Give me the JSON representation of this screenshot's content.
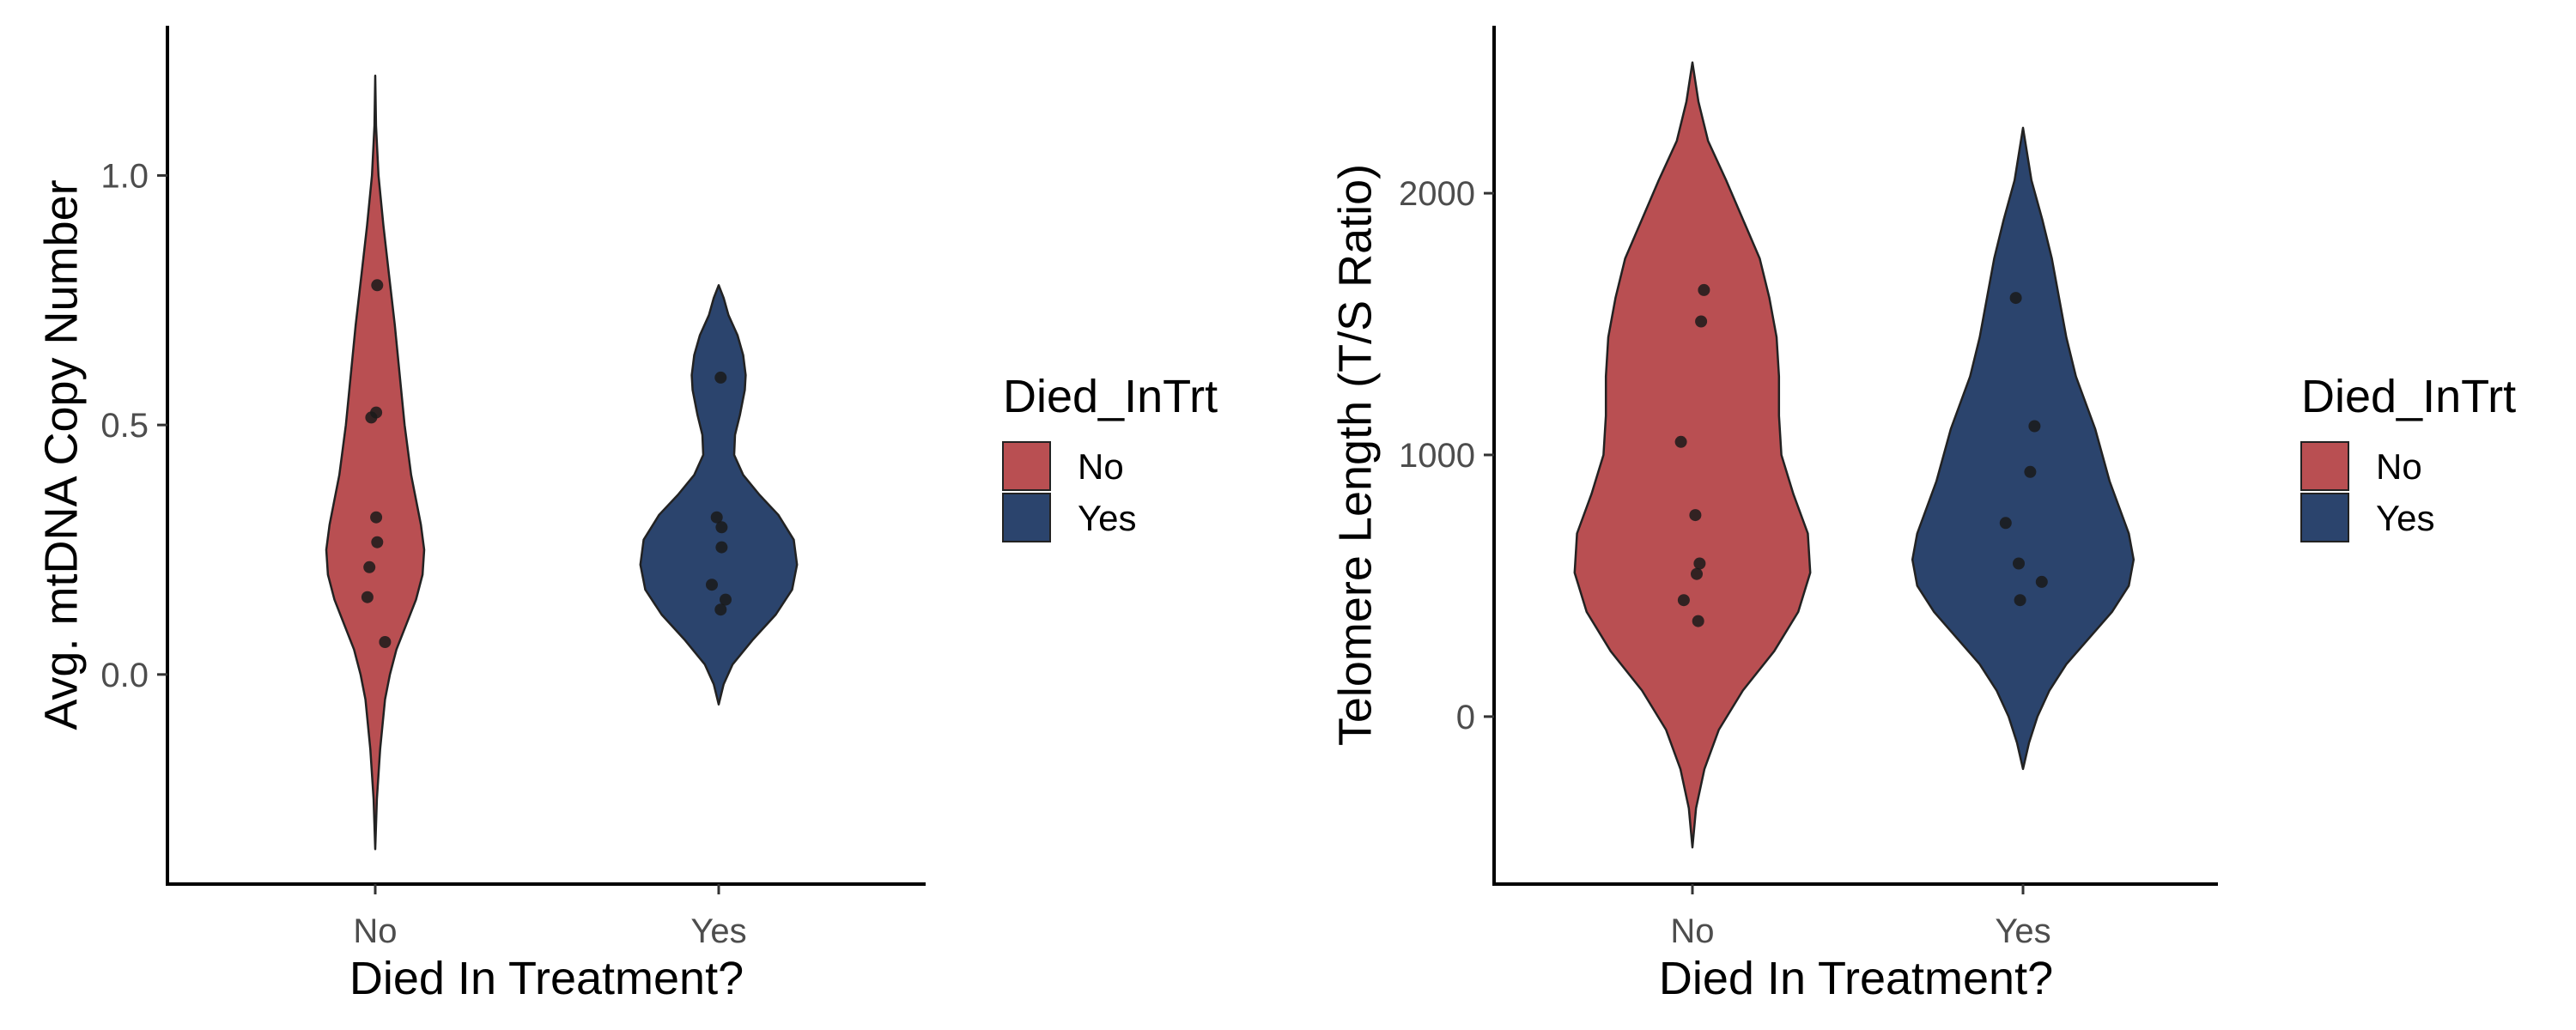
{
  "chart_data": [
    {
      "type": "violin",
      "xlabel": "Died In Treatment?",
      "ylabel": "Avg. mtDNA Copy Number",
      "categories": [
        "No",
        "Yes"
      ],
      "ylim": [
        -0.42,
        1.3
      ],
      "yticks": [
        0.0,
        0.5,
        1.0
      ],
      "ytick_labels": [
        "0.0",
        "0.5",
        "1.0"
      ],
      "grid": false,
      "legend": {
        "title": "Died_InTrt",
        "position": "right",
        "entries": [
          {
            "label": "No",
            "color": "#b94f52"
          },
          {
            "label": "Yes",
            "color": "#2b446d"
          }
        ]
      },
      "groups": [
        {
          "name": "No",
          "color": "#b94f52",
          "points": [
            0.78,
            0.525,
            0.515,
            0.315,
            0.265,
            0.215,
            0.155,
            0.065
          ],
          "jitter": [
            0.02,
            0.01,
            -0.04,
            0.01,
            0.02,
            -0.06,
            -0.08,
            0.1
          ],
          "profile": [
            [
              -0.35,
              0.0
            ],
            [
              -0.25,
              0.02
            ],
            [
              -0.15,
              0.06
            ],
            [
              -0.05,
              0.12
            ],
            [
              0.0,
              0.18
            ],
            [
              0.05,
              0.26
            ],
            [
              0.1,
              0.38
            ],
            [
              0.15,
              0.5
            ],
            [
              0.2,
              0.58
            ],
            [
              0.25,
              0.6
            ],
            [
              0.3,
              0.56
            ],
            [
              0.35,
              0.5
            ],
            [
              0.4,
              0.44
            ],
            [
              0.5,
              0.36
            ],
            [
              0.6,
              0.3
            ],
            [
              0.7,
              0.24
            ],
            [
              0.8,
              0.17
            ],
            [
              0.9,
              0.1
            ],
            [
              1.0,
              0.04
            ],
            [
              1.1,
              0.01
            ],
            [
              1.2,
              0.0
            ]
          ]
        },
        {
          "name": "Yes",
          "color": "#2b446d",
          "points": [
            0.595,
            0.315,
            0.295,
            0.255,
            0.18,
            0.15,
            0.13
          ],
          "jitter": [
            0.02,
            -0.02,
            0.03,
            0.03,
            -0.07,
            0.07,
            0.02
          ],
          "profile": [
            [
              -0.06,
              0.0
            ],
            [
              -0.02,
              0.06
            ],
            [
              0.02,
              0.17
            ],
            [
              0.07,
              0.42
            ],
            [
              0.12,
              0.7
            ],
            [
              0.17,
              0.9
            ],
            [
              0.22,
              0.96
            ],
            [
              0.27,
              0.92
            ],
            [
              0.32,
              0.73
            ],
            [
              0.36,
              0.5
            ],
            [
              0.4,
              0.3
            ],
            [
              0.44,
              0.19
            ],
            [
              0.48,
              0.2
            ],
            [
              0.52,
              0.26
            ],
            [
              0.57,
              0.32
            ],
            [
              0.6,
              0.33
            ],
            [
              0.64,
              0.3
            ],
            [
              0.68,
              0.23
            ],
            [
              0.72,
              0.12
            ],
            [
              0.755,
              0.06
            ],
            [
              0.78,
              0.0
            ]
          ]
        }
      ]
    },
    {
      "type": "violin",
      "xlabel": "Died In Treatment?",
      "ylabel": "Telomere Length (T/S Ratio)",
      "categories": [
        "No",
        "Yes"
      ],
      "ylim": [
        -640,
        2640
      ],
      "yticks": [
        0,
        1000,
        2000
      ],
      "ytick_labels": [
        "0",
        "1000",
        "2000"
      ],
      "grid": false,
      "legend": {
        "title": "Died_InTrt",
        "position": "right",
        "entries": [
          {
            "label": "No",
            "color": "#b94f52"
          },
          {
            "label": "Yes",
            "color": "#2b446d"
          }
        ]
      },
      "groups": [
        {
          "name": "No",
          "color": "#b94f52",
          "points": [
            1630,
            1510,
            1050,
            770,
            585,
            545,
            445,
            365
          ],
          "jitter": [
            0.08,
            0.06,
            -0.08,
            0.02,
            0.05,
            0.03,
            -0.06,
            0.04
          ],
          "profile": [
            [
              -500,
              0.0
            ],
            [
              -350,
              0.03
            ],
            [
              -200,
              0.1
            ],
            [
              -50,
              0.22
            ],
            [
              100,
              0.42
            ],
            [
              250,
              0.68
            ],
            [
              400,
              0.88
            ],
            [
              550,
              0.98
            ],
            [
              700,
              0.96
            ],
            [
              850,
              0.84
            ],
            [
              1000,
              0.74
            ],
            [
              1150,
              0.72
            ],
            [
              1300,
              0.72
            ],
            [
              1450,
              0.7
            ],
            [
              1600,
              0.64
            ],
            [
              1750,
              0.56
            ],
            [
              1900,
              0.42
            ],
            [
              2050,
              0.28
            ],
            [
              2200,
              0.13
            ],
            [
              2350,
              0.05
            ],
            [
              2500,
              0.0
            ]
          ]
        },
        {
          "name": "Yes",
          "color": "#2b446d",
          "points": [
            1600,
            1110,
            935,
            740,
            585,
            515,
            445
          ],
          "jitter": [
            -0.05,
            0.08,
            0.05,
            -0.12,
            -0.03,
            0.13,
            -0.02
          ],
          "profile": [
            [
              -200,
              0.0
            ],
            [
              -100,
              0.05
            ],
            [
              0,
              0.12
            ],
            [
              100,
              0.22
            ],
            [
              200,
              0.36
            ],
            [
              300,
              0.55
            ],
            [
              400,
              0.74
            ],
            [
              500,
              0.88
            ],
            [
              600,
              0.92
            ],
            [
              700,
              0.88
            ],
            [
              800,
              0.8
            ],
            [
              900,
              0.72
            ],
            [
              1000,
              0.66
            ],
            [
              1100,
              0.6
            ],
            [
              1200,
              0.52
            ],
            [
              1300,
              0.44
            ],
            [
              1450,
              0.36
            ],
            [
              1600,
              0.3
            ],
            [
              1750,
              0.24
            ],
            [
              1900,
              0.16
            ],
            [
              2050,
              0.07
            ],
            [
              2250,
              0.0
            ]
          ]
        }
      ]
    }
  ]
}
